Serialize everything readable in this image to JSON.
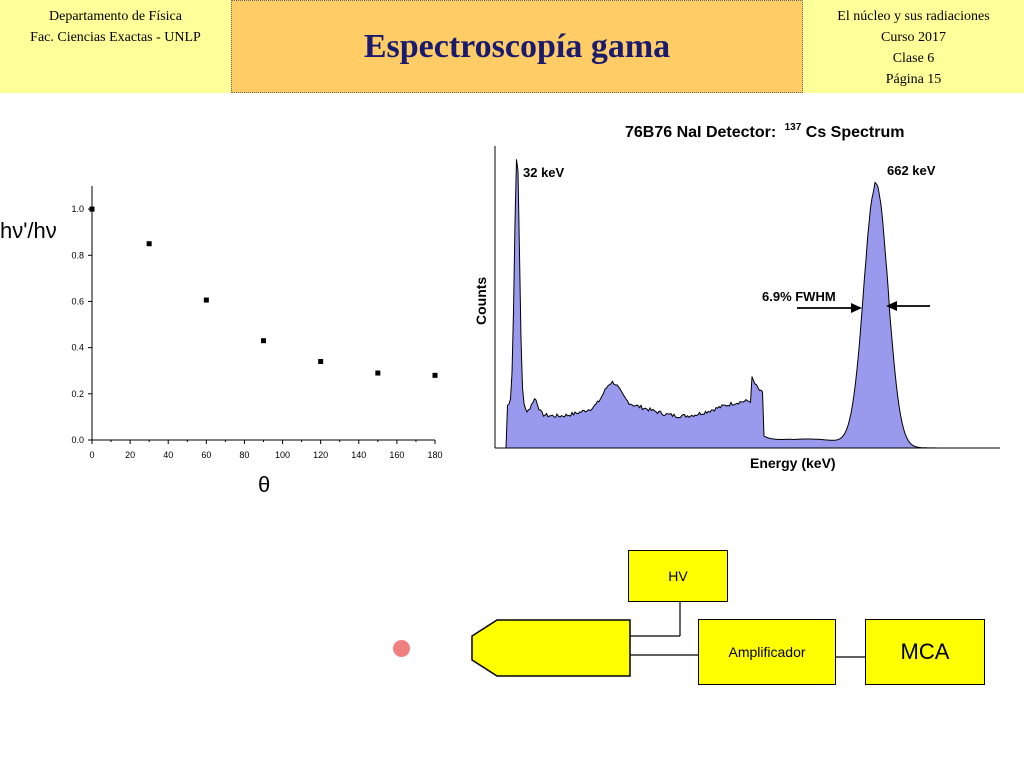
{
  "header": {
    "left_line1": "Departamento de Física",
    "left_line2": "Fac. Ciencias Exactas - UNLP",
    "title": "Espectroscopía gama",
    "right_line1": "El núcleo y sus radiaciones",
    "right_line2": "Curso 2017",
    "right_line3": "Clase 6",
    "right_line4": "Página 15"
  },
  "chart_data": [
    {
      "type": "scatter",
      "ylabel": "hν'/hν",
      "xlabel": "θ",
      "xlim": [
        0,
        180
      ],
      "ylim": [
        0,
        1.1
      ],
      "x_ticks": [
        0,
        20,
        40,
        60,
        80,
        100,
        120,
        140,
        160,
        180
      ],
      "y_ticks": [
        0.0,
        0.2,
        0.4,
        0.6,
        0.8,
        1.0
      ],
      "points": [
        {
          "x": 0,
          "y": 1.0
        },
        {
          "x": 30,
          "y": 0.85
        },
        {
          "x": 60,
          "y": 0.606
        },
        {
          "x": 90,
          "y": 0.43
        },
        {
          "x": 120,
          "y": 0.34
        },
        {
          "x": 150,
          "y": 0.29
        },
        {
          "x": 180,
          "y": 0.28
        }
      ],
      "grid": false
    },
    {
      "type": "area",
      "title": "76B76 NaI Detector:",
      "title_isotope_mass": "137",
      "title_isotope_rest": "Cs Spectrum",
      "xlabel": "Energy (keV)",
      "ylabel": "Counts",
      "annotations": {
        "peak_low": "32 keV",
        "peak_high": "662 keV",
        "fwhm": "6.9% FWHM"
      },
      "fill_color": "#9999ee"
    }
  ],
  "diagram": {
    "hv_label": "HV",
    "amp_label": "Amplificador",
    "mca_label": "MCA",
    "box_color": "#ffff00"
  }
}
